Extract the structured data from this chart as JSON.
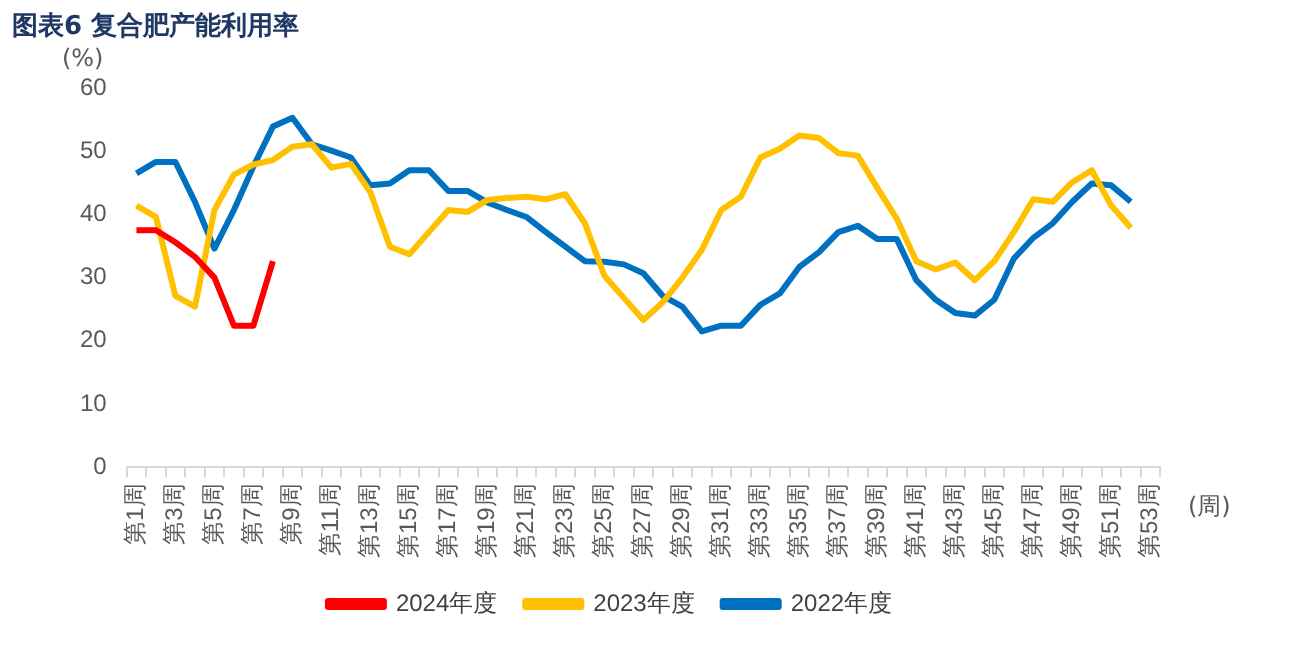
{
  "chart_data": {
    "type": "line",
    "title": "图表6  复合肥产能利用率",
    "ylabel": "(%)",
    "xlabel": "(周)",
    "categories": [
      "第1周",
      null,
      "第3周",
      null,
      "第5周",
      null,
      "第7周",
      null,
      "第9周",
      null,
      "第11周",
      null,
      "第13周",
      null,
      "第15周",
      null,
      "第17周",
      null,
      "第19周",
      null,
      "第21周",
      null,
      "第23周",
      null,
      "第25周",
      null,
      "第27周",
      null,
      "第29周",
      null,
      "第31周",
      null,
      "第33周",
      null,
      "第35周",
      null,
      "第37周",
      null,
      "第39周",
      null,
      "第41周",
      null,
      "第43周",
      null,
      "第45周",
      null,
      "第47周",
      null,
      "第49周",
      null,
      "第51周",
      null,
      "第53周"
    ],
    "series": [
      {
        "name": "2024年度",
        "color": "#ff0000",
        "values": [
          37.5,
          37.5,
          35.6,
          33.3,
          30,
          22.4,
          22.4,
          32.6,
          null,
          null,
          null,
          null,
          null,
          null,
          null,
          null,
          null,
          null,
          null,
          null,
          null,
          null,
          null,
          null,
          null,
          null,
          null,
          null,
          null,
          null,
          null,
          null,
          null,
          null,
          null,
          null,
          null,
          null,
          null,
          null,
          null,
          null,
          null,
          null,
          null,
          null,
          null,
          null,
          null,
          null,
          null,
          null,
          null
        ]
      },
      {
        "name": "2023年度",
        "color": "#ffc000",
        "values": [
          41.4,
          39.6,
          27.1,
          25.4,
          40.7,
          46.3,
          47.9,
          48.6,
          50.7,
          51.1,
          47.4,
          48,
          43.5,
          34.9,
          33.7,
          37.2,
          40.7,
          40.4,
          42.3,
          42.6,
          42.8,
          42.4,
          43.2,
          38.6,
          30.3,
          26.8,
          23.3,
          26.1,
          30,
          34.4,
          40.7,
          42.8,
          49,
          50.4,
          52.5,
          52.1,
          49.7,
          49.3,
          44.2,
          39.3,
          32.6,
          31.3,
          32.4,
          29.6,
          32.6,
          37.2,
          42.4,
          42,
          45.1,
          47,
          41.4,
          37.9,
          null
        ]
      },
      {
        "name": "2022年度",
        "color": "#0070c0",
        "values": [
          46.5,
          48.3,
          48.3,
          42,
          34.6,
          40.7,
          47.6,
          53.9,
          55.3,
          51.1,
          50.1,
          49,
          44.6,
          44.9,
          47,
          47,
          43.7,
          43.7,
          41.9,
          40.7,
          39.6,
          37.2,
          34.9,
          32.6,
          32.5,
          32.1,
          30.7,
          27.1,
          25.4,
          21.5,
          22.4,
          22.4,
          25.7,
          27.5,
          31.7,
          34,
          37.2,
          38.2,
          36.1,
          36.1,
          29.6,
          26.5,
          24.4,
          24,
          26.5,
          33,
          36.3,
          38.6,
          42,
          44.9,
          44.6,
          42,
          null
        ]
      }
    ],
    "ylim": [
      0,
      60
    ],
    "yticks": [
      0,
      10,
      20,
      30,
      40,
      50,
      60
    ],
    "grid": false,
    "legend": "bottom",
    "marker": "none",
    "line_style": "solid"
  }
}
